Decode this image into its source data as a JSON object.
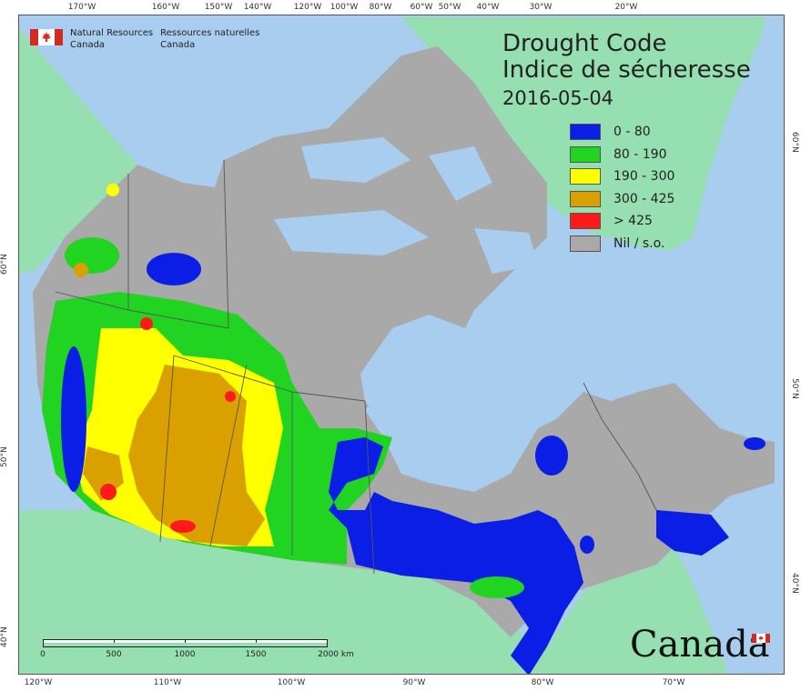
{
  "map": {
    "title_en": "Drought Code",
    "title_fr": "Indice de sécheresse",
    "date": "2016-05-04",
    "agency_en_1": "Natural Resources",
    "agency_en_2": "Canada",
    "agency_fr_1": "Ressources naturelles",
    "agency_fr_2": "Canada",
    "wordmark": "Canada",
    "legend": [
      {
        "label": "0 - 80",
        "color": "#0b1ee6"
      },
      {
        "label": "80 - 190",
        "color": "#22d422"
      },
      {
        "label": "190 - 300",
        "color": "#ffff00"
      },
      {
        "label": "300 - 425",
        "color": "#d9a000"
      },
      {
        "label": "> 425",
        "color": "#ff1a1a"
      },
      {
        "label": "Nil / s.o.",
        "color": "#a9a9a9"
      }
    ],
    "colors": {
      "ocean": "#a9cdef",
      "foreign_land": "#96dfb0",
      "no_data": "#a9a9a9",
      "boundary": "#555555"
    },
    "scale_labels": [
      "0",
      "500",
      "1000",
      "1500",
      "2000  km"
    ],
    "top_ticks": [
      "170°W",
      "160°W",
      "150°W",
      "140°W",
      "120°W",
      "100°W",
      "80°W",
      "60°W",
      "50°W",
      "40°W",
      "30°W",
      "20°W"
    ],
    "bottom_ticks": [
      "120°W",
      "110°W",
      "100°W",
      "90°W",
      "80°W",
      "70°W"
    ],
    "left_ticks": [
      "60°N",
      "50°N",
      "40°N"
    ],
    "right_ticks": [
      "60°N",
      "50°N",
      "40°N"
    ]
  }
}
